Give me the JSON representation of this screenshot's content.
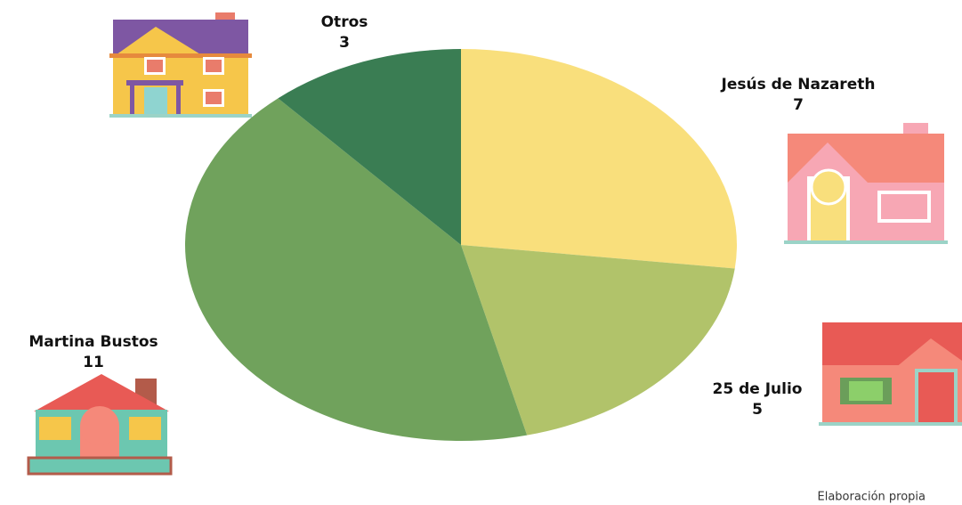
{
  "chart_data": {
    "type": "pie",
    "categories": [
      "Jesús de Nazareth",
      "25 de Julio",
      "Martina Bustos",
      "Otros"
    ],
    "values": [
      7,
      5,
      11,
      3
    ],
    "colors": [
      "#f9df7c",
      "#b1c36a",
      "#70a25c",
      "#3a7d53"
    ],
    "source": "Elaboración propia"
  }
}
